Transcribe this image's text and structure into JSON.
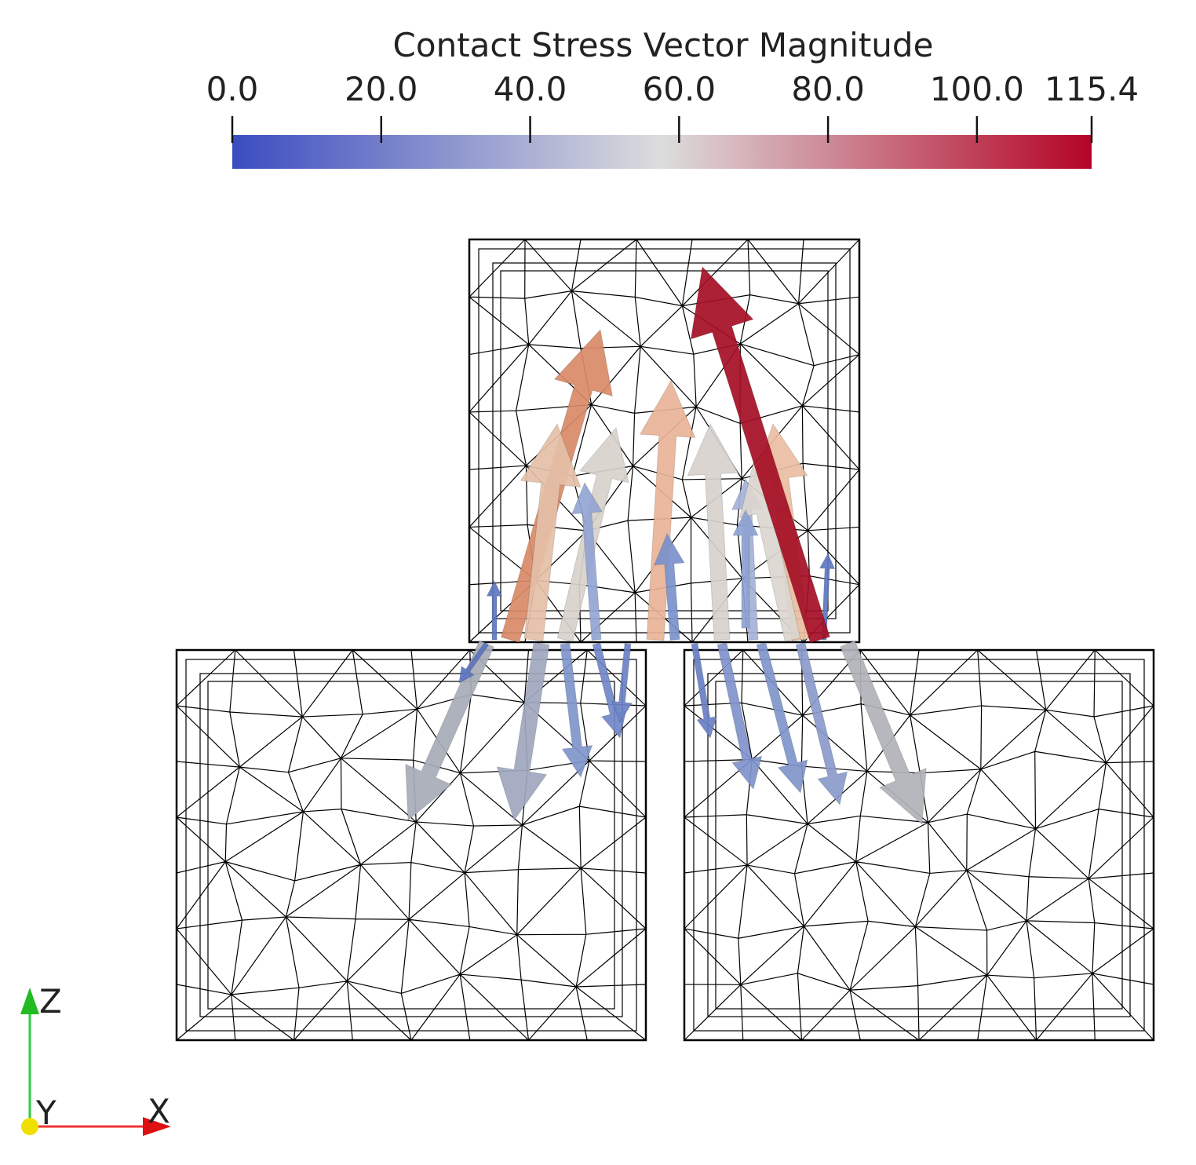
{
  "colorbar": {
    "title": "Contact Stress Vector Magnitude",
    "range": [
      0,
      115.4
    ],
    "ticks": [
      {
        "value": 0,
        "label": "0.0"
      },
      {
        "value": 20,
        "label": "20.0"
      },
      {
        "value": 40,
        "label": "40.0"
      },
      {
        "value": 60,
        "label": "60.0"
      },
      {
        "value": 80,
        "label": "80.0"
      },
      {
        "value": 100,
        "label": "100.0"
      },
      {
        "value": 115.4,
        "label": "115.4"
      }
    ],
    "colors": [
      "#3b4cc0",
      "#dddddd",
      "#b40426"
    ]
  },
  "axes_triad": {
    "z": "Z",
    "y": "Y",
    "x": "X"
  }
}
